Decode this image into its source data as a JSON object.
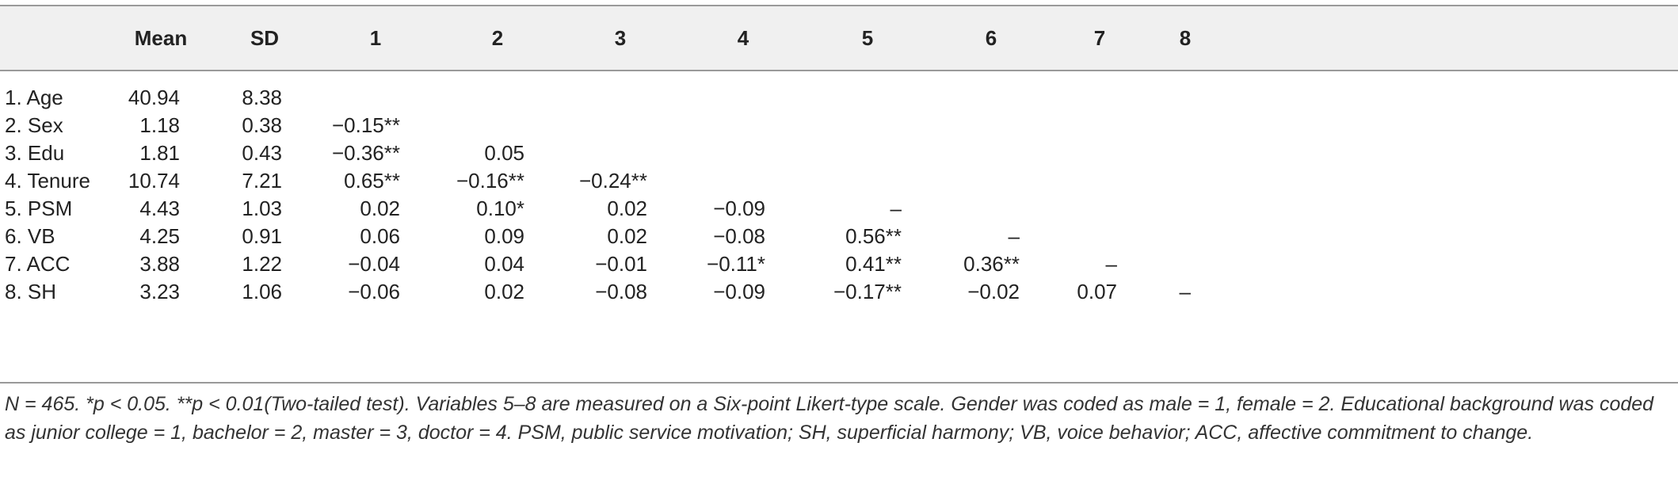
{
  "header": [
    "Mean",
    "SD",
    "1",
    "2",
    "3",
    "4",
    "5",
    "6",
    "7",
    "8"
  ],
  "rows": [
    {
      "label": "1. Age",
      "mean": "40.94",
      "sd": "8.38",
      "cells": [
        "",
        "",
        "",
        "",
        "",
        "",
        "",
        ""
      ]
    },
    {
      "label": "2. Sex",
      "mean": "1.18",
      "sd": "0.38",
      "cells": [
        "−0.15**",
        "",
        "",
        "",
        "",
        "",
        "",
        ""
      ]
    },
    {
      "label": "3. Edu",
      "mean": "1.81",
      "sd": "0.43",
      "cells": [
        "−0.36**",
        "0.05",
        "",
        "",
        "",
        "",
        "",
        ""
      ]
    },
    {
      "label": "4. Tenure",
      "mean": "10.74",
      "sd": "7.21",
      "cells": [
        "0.65**",
        "−0.16**",
        "−0.24**",
        "",
        "",
        "",
        "",
        ""
      ]
    },
    {
      "label": "5. PSM",
      "mean": "4.43",
      "sd": "1.03",
      "cells": [
        "0.02",
        "0.10*",
        "0.02",
        "−0.09",
        "–",
        "",
        "",
        ""
      ]
    },
    {
      "label": "6. VB",
      "mean": "4.25",
      "sd": "0.91",
      "cells": [
        "0.06",
        "0.09",
        "0.02",
        "−0.08",
        "0.56**",
        "–",
        "",
        ""
      ]
    },
    {
      "label": "7. ACC",
      "mean": "3.88",
      "sd": "1.22",
      "cells": [
        "−0.04",
        "0.04",
        "−0.01",
        "−0.11*",
        "0.41**",
        "0.36**",
        "–",
        ""
      ]
    },
    {
      "label": "8. SH",
      "mean": "3.23",
      "sd": "1.06",
      "cells": [
        "−0.06",
        "0.02",
        "−0.08",
        "−0.09",
        "−0.17**",
        "−0.02",
        "0.07",
        "–"
      ]
    }
  ],
  "footnote": "N = 465. *p < 0.05. **p < 0.01(Two-tailed test). Variables 5–8 are measured on a Six-point Likert-type scale. Gender was coded as male = 1, female = 2. Educational background was coded as junior college = 1, bachelor = 2, master = 3, doctor = 4. PSM, public service motivation; SH, superficial harmony; VB, voice behavior; ACC, affective commitment to change."
}
